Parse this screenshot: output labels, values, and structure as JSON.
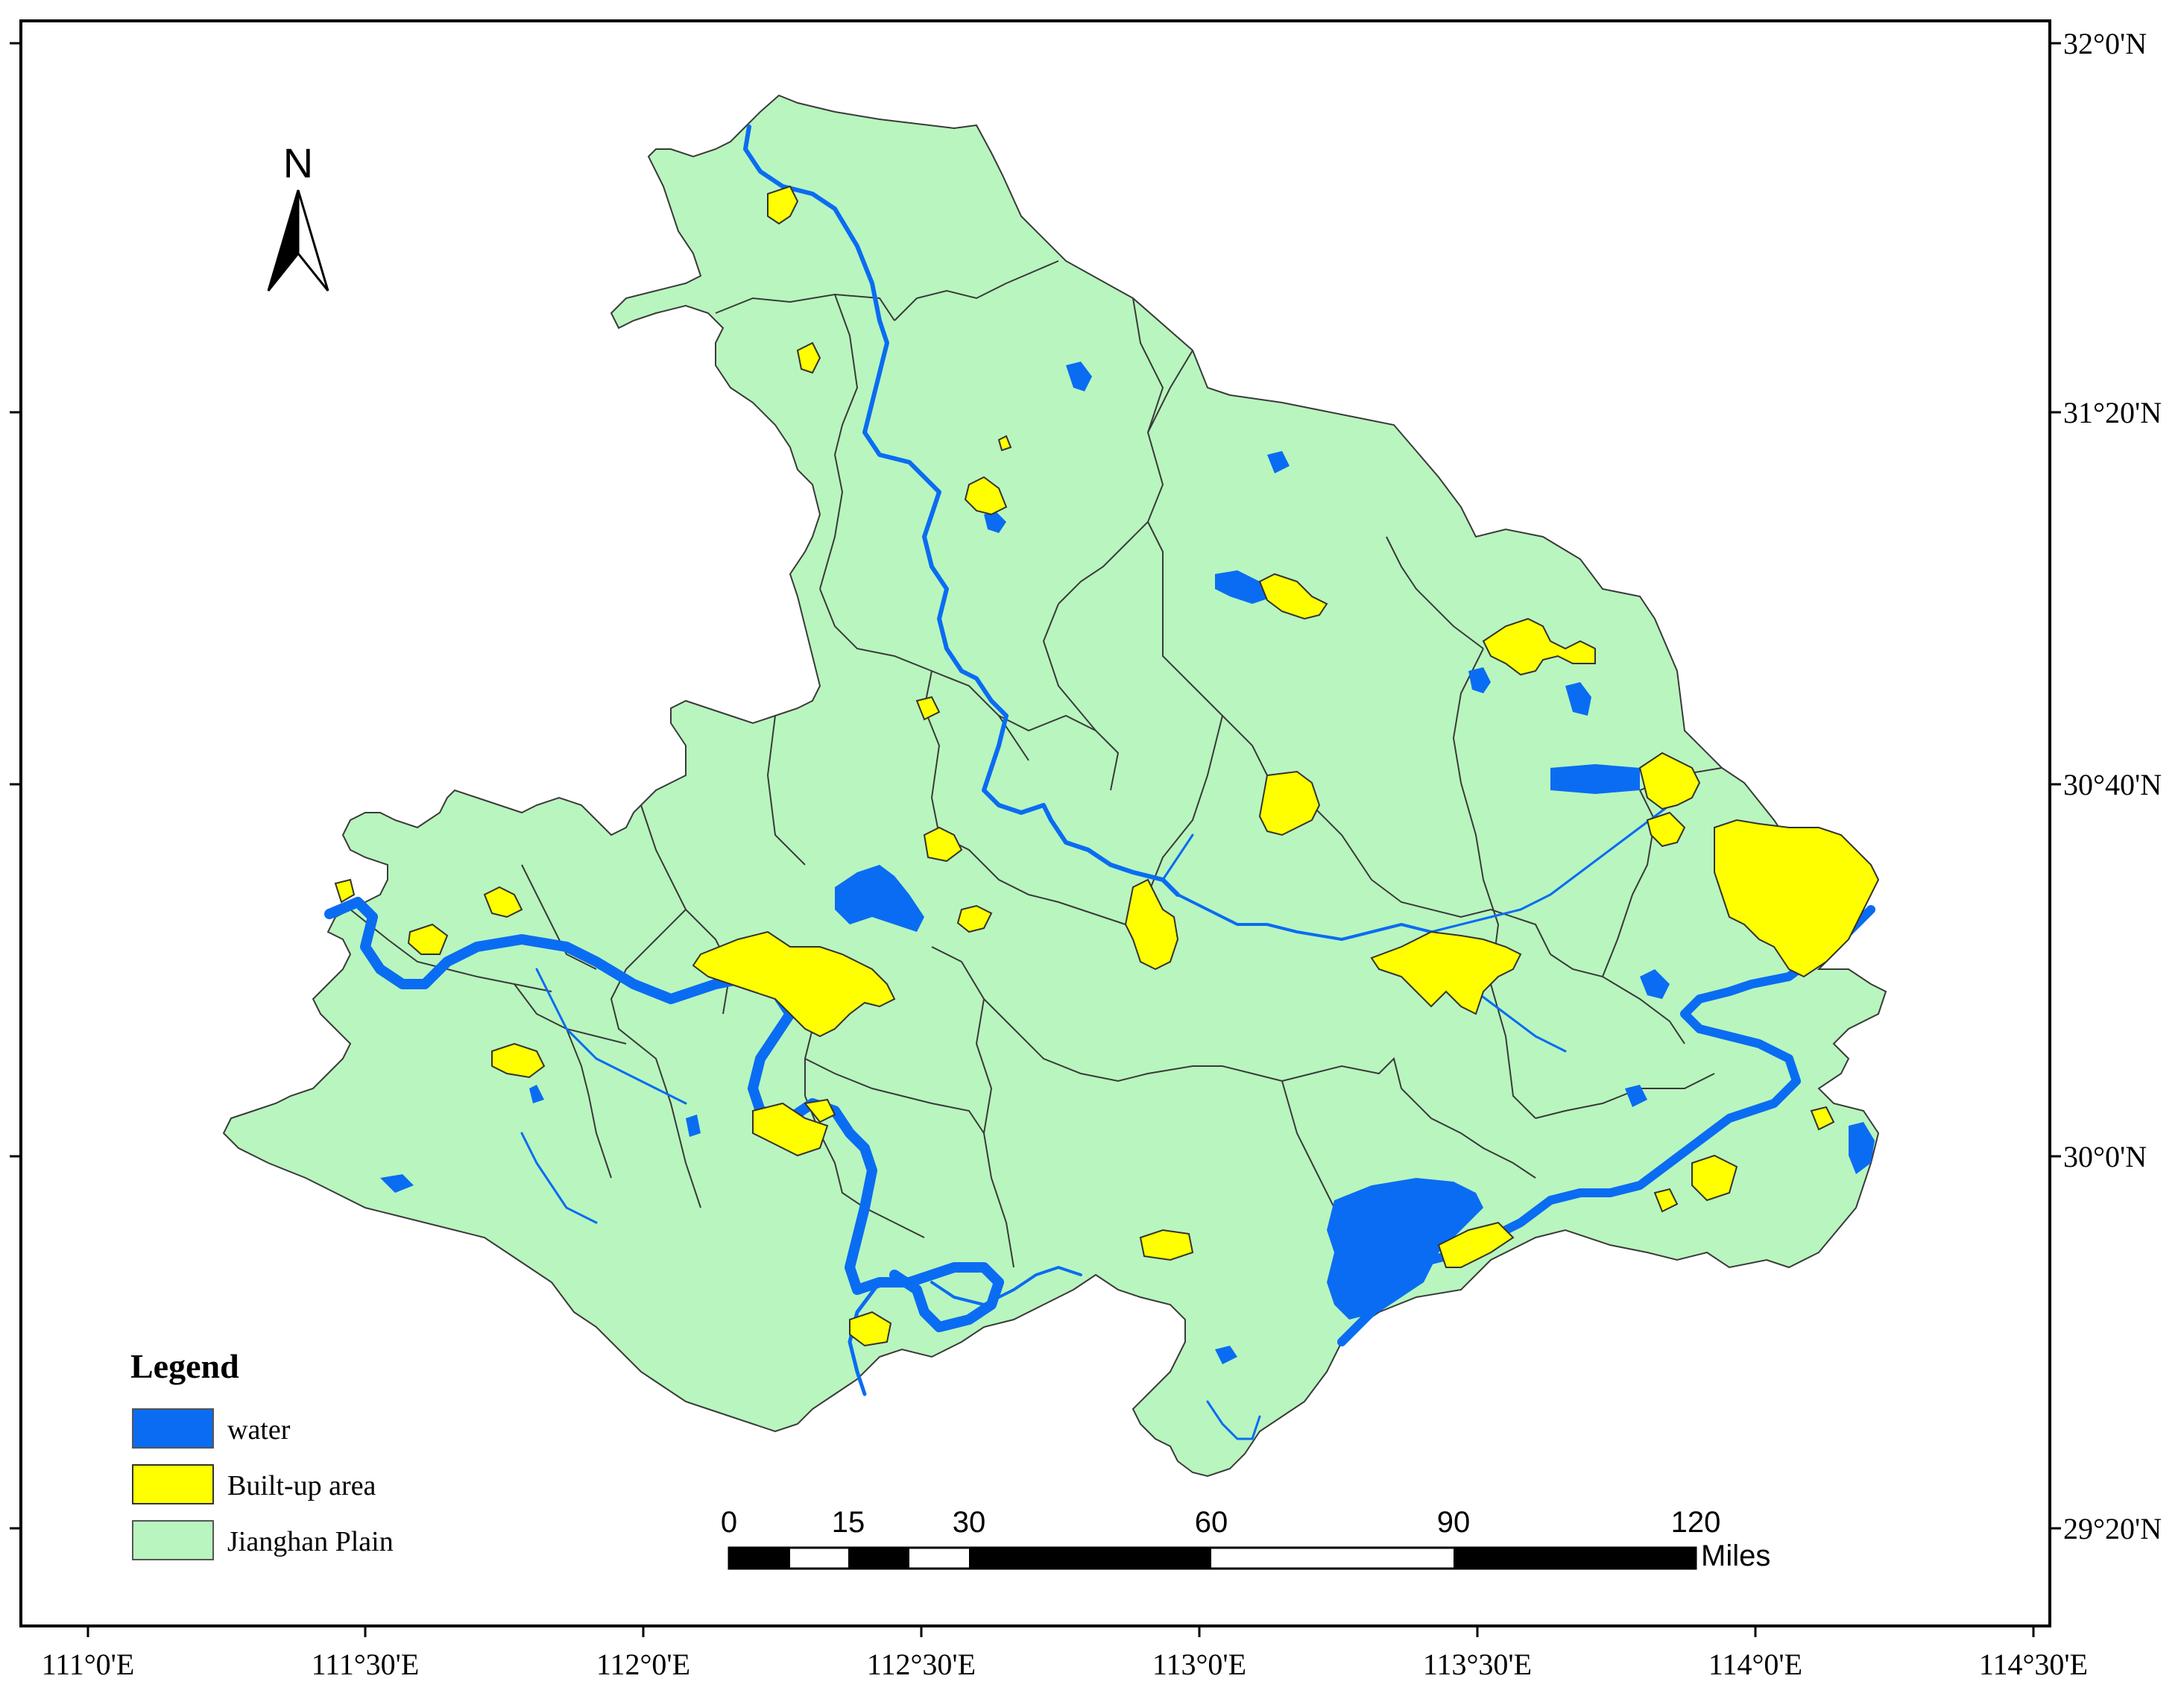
{
  "axes": {
    "x_labels": [
      "111°0'E",
      "111°30'E",
      "112°0'E",
      "112°30'E",
      "113°0'E",
      "113°30'E",
      "114°0'E",
      "114°30'E"
    ],
    "y_labels": [
      "32°0'N",
      "31°20'N",
      "30°40'N",
      "30°0'N",
      "29°20'N"
    ]
  },
  "north_arrow": {
    "label": "N"
  },
  "legend": {
    "title": "Legend",
    "items": [
      {
        "label": "water",
        "color": "#0a6cf2"
      },
      {
        "label": "Built-up area",
        "color": "#ffff00"
      },
      {
        "label": "Jianghan Plain",
        "color": "#b9f5bf"
      }
    ]
  },
  "scale_bar": {
    "ticks": [
      "0",
      "15",
      "30",
      "60",
      "90",
      "120"
    ],
    "unit": "Miles"
  },
  "colors": {
    "plain": "#b9f5bf",
    "water": "#0a6cf2",
    "builtup": "#ffff00",
    "boundary": "#3a3a3a"
  }
}
